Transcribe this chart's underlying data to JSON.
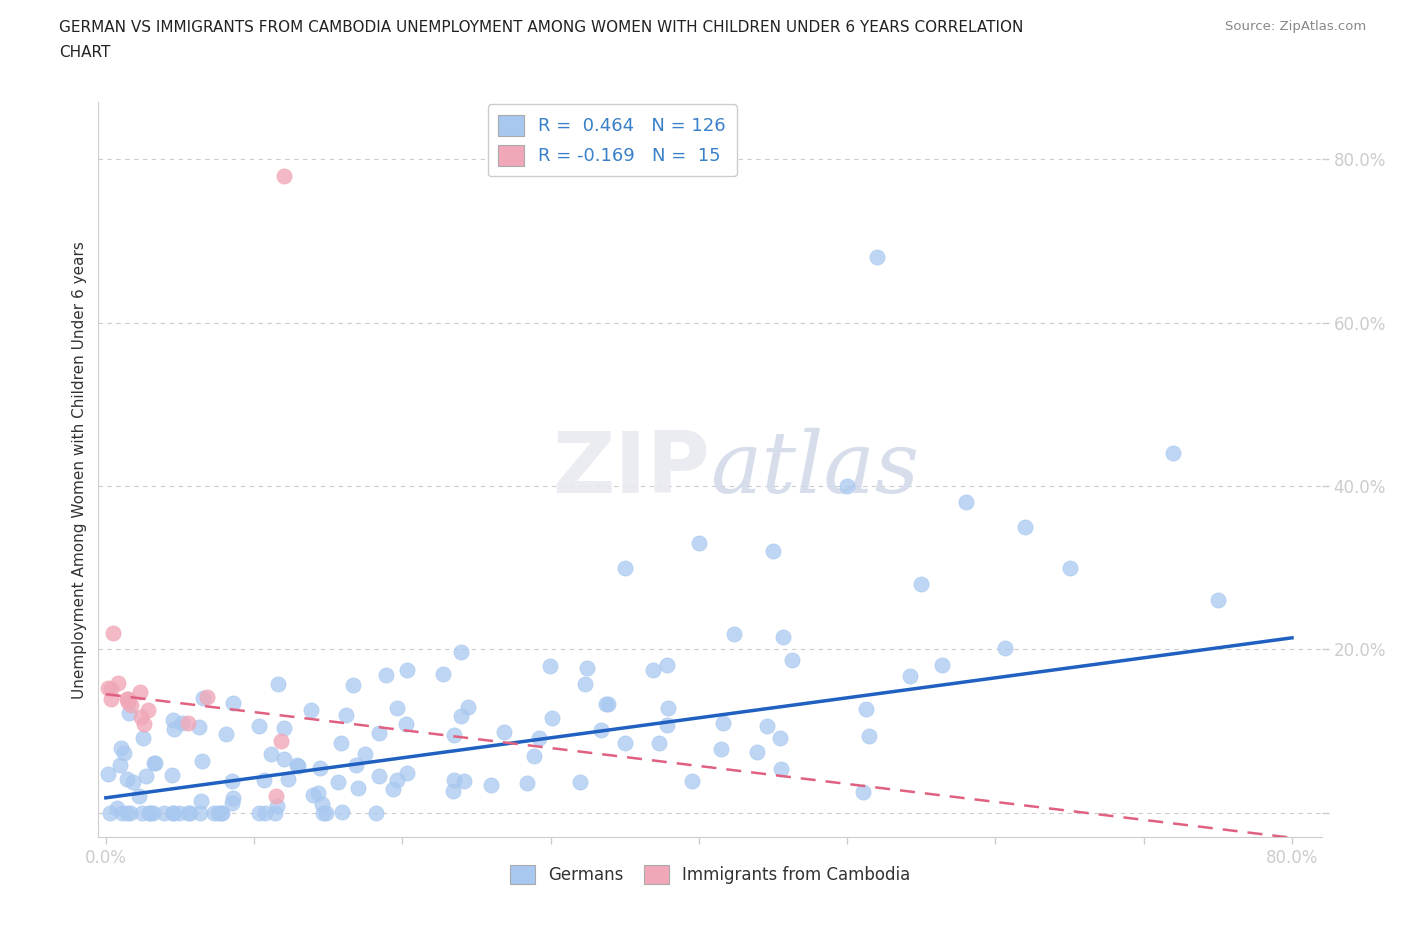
{
  "title_line1": "GERMAN VS IMMIGRANTS FROM CAMBODIA UNEMPLOYMENT AMONG WOMEN WITH CHILDREN UNDER 6 YEARS CORRELATION",
  "title_line2": "CHART",
  "source": "Source: ZipAtlas.com",
  "ylabel": "Unemployment Among Women with Children Under 6 years",
  "xlim": [
    -0.005,
    0.82
  ],
  "ylim": [
    -0.03,
    0.87
  ],
  "xtick_positions": [
    0.0,
    0.1,
    0.2,
    0.3,
    0.4,
    0.5,
    0.6,
    0.7,
    0.8
  ],
  "ytick_positions": [
    0.0,
    0.2,
    0.4,
    0.6,
    0.8
  ],
  "blue_color": "#a8c8f0",
  "pink_color": "#f0a8b8",
  "blue_line_color": "#2060c0",
  "pink_line_color": "#e06080",
  "R_blue": 0.464,
  "N_blue": 126,
  "R_pink": -0.169,
  "N_pink": 15,
  "legend_label_blue": "Germans",
  "legend_label_pink": "Immigrants from Cambodia",
  "background_color": "#ffffff",
  "blue_slope": 0.245,
  "blue_intercept": 0.018,
  "pink_slope": -0.22,
  "pink_intercept": 0.145
}
